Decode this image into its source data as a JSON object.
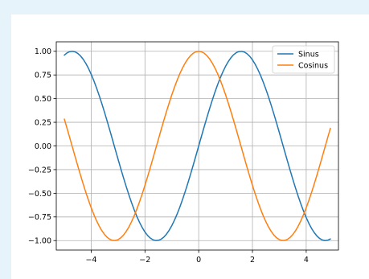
{
  "chart_data": {
    "type": "line",
    "title": "",
    "xlabel": "",
    "ylabel": "",
    "xlim": [
      -5.3,
      5.2
    ],
    "ylim": [
      -1.1,
      1.1
    ],
    "grid": true,
    "legend_position": "top-right",
    "x_ticks": [
      -4,
      -2,
      0,
      2,
      4
    ],
    "x_tick_labels": [
      "−4",
      "−2",
      "0",
      "2",
      "4"
    ],
    "y_ticks": [
      1.0,
      0.75,
      0.5,
      0.25,
      0.0,
      -0.25,
      -0.5,
      -0.75,
      -1.0
    ],
    "y_tick_labels": [
      "1.00",
      "0.75",
      "0.50",
      "0.25",
      "0.00",
      "−0.25",
      "−0.50",
      "−0.75",
      "−1.00"
    ],
    "x": [
      -5.0,
      -4.9,
      -4.8,
      -4.7,
      -4.6,
      -4.5,
      -4.4,
      -4.3,
      -4.2,
      -4.1,
      -4.0,
      -3.9,
      -3.8,
      -3.7,
      -3.6,
      -3.5,
      -3.4,
      -3.3,
      -3.2,
      -3.1,
      -3.0,
      -2.9,
      -2.8,
      -2.7,
      -2.6,
      -2.5,
      -2.4,
      -2.3,
      -2.2,
      -2.1,
      -2.0,
      -1.9,
      -1.8,
      -1.7,
      -1.6,
      -1.5,
      -1.4,
      -1.3,
      -1.2,
      -1.1,
      -1.0,
      -0.9,
      -0.8,
      -0.7,
      -0.6,
      -0.5,
      -0.4,
      -0.3,
      -0.2,
      -0.1,
      0.0,
      0.1,
      0.2,
      0.3,
      0.4,
      0.5,
      0.6,
      0.7,
      0.8,
      0.9,
      1.0,
      1.1,
      1.2,
      1.3,
      1.4,
      1.5,
      1.6,
      1.7,
      1.8,
      1.9,
      2.0,
      2.1,
      2.2,
      2.3,
      2.4,
      2.5,
      2.6,
      2.7,
      2.8,
      2.9,
      3.0,
      3.1,
      3.2,
      3.3,
      3.4,
      3.5,
      3.6,
      3.7,
      3.8,
      3.9,
      4.0,
      4.1,
      4.2,
      4.3,
      4.4,
      4.5,
      4.6,
      4.7,
      4.8,
      4.9
    ],
    "series": [
      {
        "name": "Sinus",
        "color": "#1f77b4",
        "values": [
          0.9589,
          0.9825,
          0.9962,
          0.9999,
          0.9937,
          0.9775,
          0.9516,
          0.9162,
          0.8716,
          0.8183,
          0.7568,
          0.6878,
          0.6119,
          0.5298,
          0.4425,
          0.3508,
          0.2555,
          0.1577,
          0.0584,
          -0.0416,
          -0.1411,
          -0.2392,
          -0.335,
          -0.4274,
          -0.5155,
          -0.5985,
          -0.6755,
          -0.7457,
          -0.8085,
          -0.8632,
          -0.9093,
          -0.9463,
          -0.9738,
          -0.9917,
          -0.9996,
          -0.9975,
          -0.9854,
          -0.9636,
          -0.932,
          -0.8912,
          -0.8415,
          -0.7833,
          -0.7174,
          -0.6442,
          -0.5646,
          -0.4794,
          -0.3894,
          -0.2955,
          -0.1987,
          -0.0998,
          0.0,
          0.0998,
          0.1987,
          0.2955,
          0.3894,
          0.4794,
          0.5646,
          0.6442,
          0.7174,
          0.7833,
          0.8415,
          0.8912,
          0.932,
          0.9636,
          0.9854,
          0.9975,
          0.9996,
          0.9917,
          0.9738,
          0.9463,
          0.9093,
          0.8632,
          0.8085,
          0.7457,
          0.6755,
          0.5985,
          0.5155,
          0.4274,
          0.335,
          0.2392,
          0.1411,
          0.0416,
          -0.0584,
          -0.1577,
          -0.2555,
          -0.3508,
          -0.4425,
          -0.5298,
          -0.6119,
          -0.6878,
          -0.7568,
          -0.8183,
          -0.8716,
          -0.9162,
          -0.9516,
          -0.9775,
          -0.9937,
          -0.9999,
          -0.9962,
          -0.9825
        ]
      },
      {
        "name": "Cosinus",
        "color": "#ff7f0e",
        "values": [
          0.2837,
          0.1865,
          0.0875,
          -0.0124,
          -0.1122,
          -0.2108,
          -0.3073,
          -0.4008,
          -0.4903,
          -0.5748,
          -0.6536,
          -0.7259,
          -0.791,
          -0.8481,
          -0.8968,
          -0.9365,
          -0.9668,
          -0.9875,
          -0.9983,
          -0.9991,
          -0.99,
          -0.971,
          -0.9422,
          -0.904,
          -0.8569,
          -0.8011,
          -0.7374,
          -0.6663,
          -0.5885,
          -0.5048,
          -0.4161,
          -0.3233,
          -0.2272,
          -0.1288,
          -0.0292,
          0.0707,
          0.17,
          0.2675,
          0.3624,
          0.4536,
          0.5403,
          0.6216,
          0.6967,
          0.7648,
          0.8253,
          0.8776,
          0.9211,
          0.9553,
          0.9801,
          0.995,
          1.0,
          0.995,
          0.9801,
          0.9553,
          0.9211,
          0.8776,
          0.8253,
          0.7648,
          0.6967,
          0.6216,
          0.5403,
          0.4536,
          0.3624,
          0.2675,
          0.17,
          0.0707,
          -0.0292,
          -0.1288,
          -0.2272,
          -0.3233,
          -0.4161,
          -0.5048,
          -0.5885,
          -0.6663,
          -0.7374,
          -0.8011,
          -0.8569,
          -0.904,
          -0.9422,
          -0.971,
          -0.99,
          -0.9991,
          -0.9983,
          -0.9875,
          -0.9668,
          -0.9365,
          -0.8968,
          -0.8481,
          -0.791,
          -0.7259,
          -0.6536,
          -0.5748,
          -0.4903,
          -0.4008,
          -0.3073,
          -0.2108,
          -0.1122,
          -0.0124,
          0.0875,
          0.1865
        ]
      }
    ]
  }
}
